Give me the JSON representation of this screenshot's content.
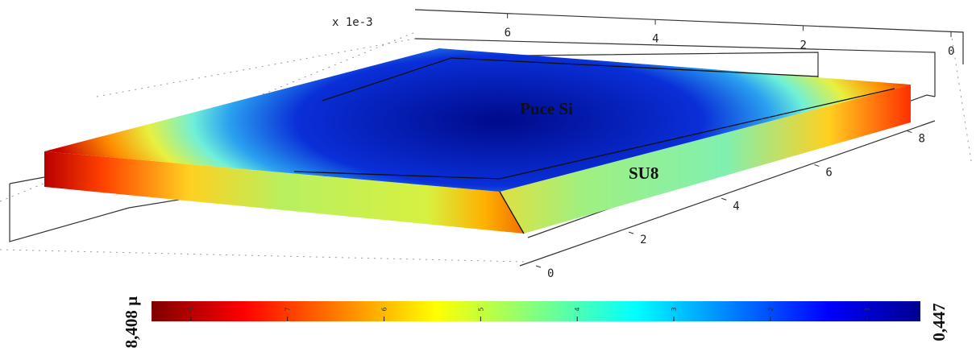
{
  "chart_data": {
    "type": "surface3d",
    "axis_multiplier": "x 1e-3",
    "xticks": [
      6,
      4,
      2,
      0
    ],
    "xlim": [
      0,
      7.25
    ],
    "yticks": [
      0,
      2,
      4,
      6,
      8
    ],
    "ylim": [
      0,
      8.6
    ],
    "annotations": [
      "Puce Si",
      "SU8"
    ],
    "colorbar": {
      "min": {
        "value": 0.447,
        "label": "0,447"
      },
      "max": {
        "value": 8.408,
        "label": "8,408 µ"
      },
      "ticks": [
        8,
        7,
        6,
        5,
        4,
        3,
        2,
        1
      ],
      "reversed": true,
      "colormap": "jet"
    }
  }
}
